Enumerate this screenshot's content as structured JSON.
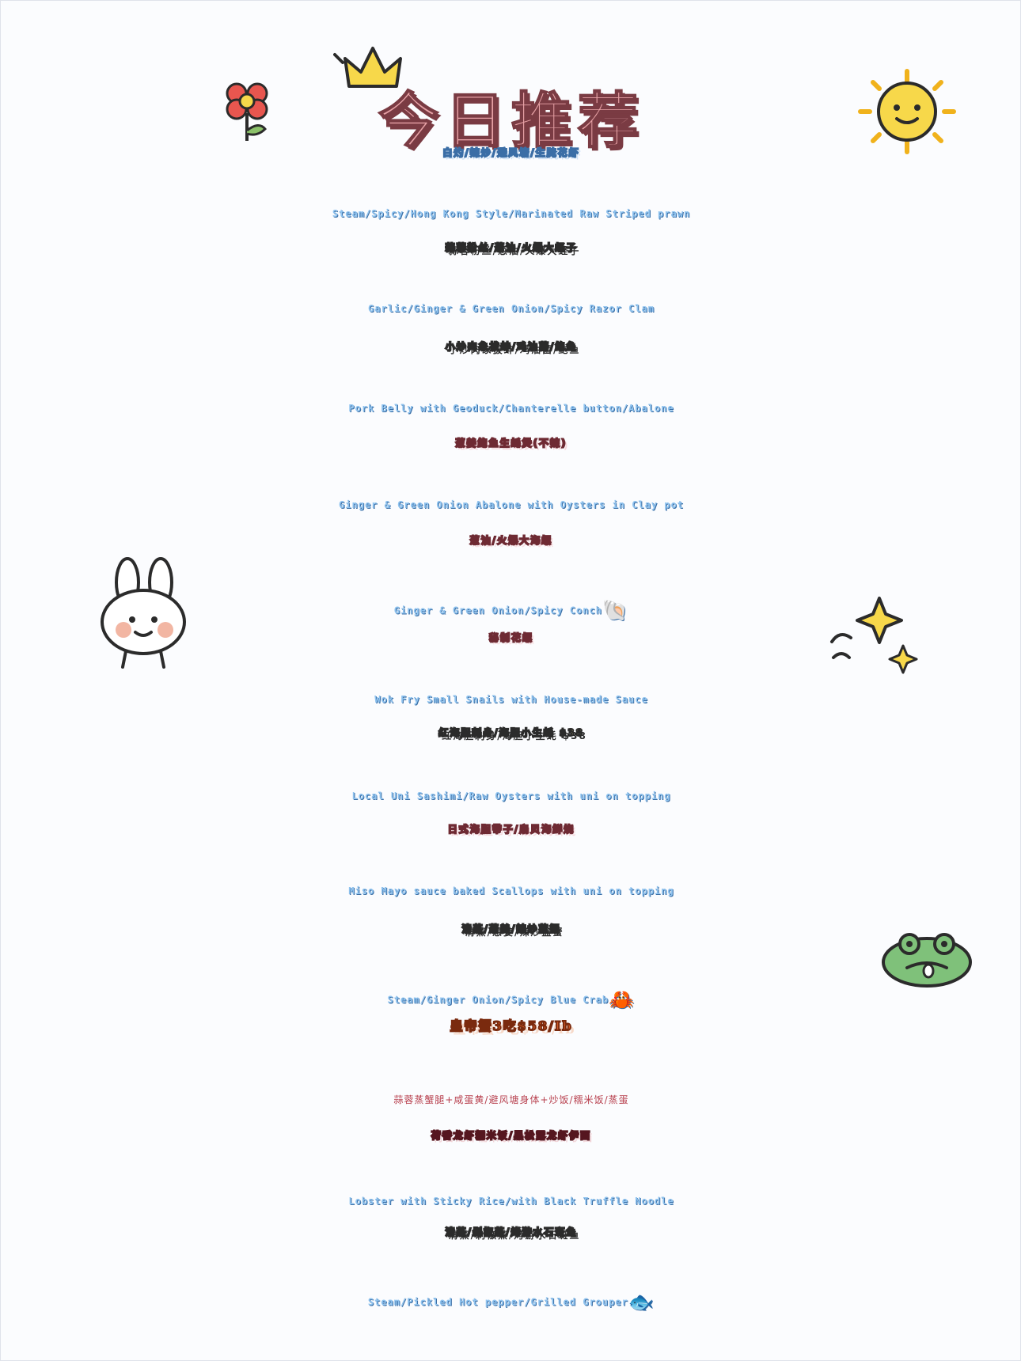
{
  "title": "今日推荐",
  "items": [
    {
      "zh": "白灼/辣炒/避风塘/生腌花虾",
      "en": "Steam/Spicy/Hong Kong Style/Marinated Raw Striped prawn"
    },
    {
      "zh": "蒜蓉粉丝/葱油/火爆大蛏子",
      "en": "Garlic/Ginger & Green Onion/Spicy Razor Clam"
    },
    {
      "zh": "小炒肉象拔蚌/鸡油菌/鲍鱼",
      "en": "Pork Belly with Geoduck/Chanterelle button/Abalone"
    },
    {
      "zh": "葱姜鲍鱼生蚝煲(不辣)",
      "en": "Ginger & Green Onion Abalone with Oysters in Clay pot"
    },
    {
      "zh": "葱油/火爆大海螺",
      "en": "Ginger & Green Onion/Spicy Conch"
    },
    {
      "zh": "秘制花螺",
      "en": "Wok Fry Small Snails with House-made Sauce"
    },
    {
      "zh": "红海胆刺身/海胆小生蚝 $38",
      "en": "Local Uni Sashimi/Raw Oysters with uni on topping"
    },
    {
      "zh": "日式海胆带子/扇贝海鲜烧",
      "en": "Miso Mayo sauce baked Scallops with uni on topping"
    },
    {
      "zh": "清蒸/葱姜/辣炒蓝蟹",
      "en": "Steam/Ginger Onion/Spicy Blue Crab"
    },
    {
      "zh": "皇帝蟹3吃$58/Ib",
      "en": "蒜蓉蒸蟹腿+咸蛋黄/避风塘身体+炒饭/糯米饭/蒸蛋"
    },
    {
      "zh": "荷香龙虾糯米饭/黑松露龙虾伊面",
      "en": "Lobster with Sticky Rice/with Black Truffle Noodle"
    },
    {
      "zh": "清蒸/剁椒蒸/烤游水石斑鱼",
      "en": "Steam/Pickled Hot pepper/Grilled Grouper"
    }
  ],
  "icons": {
    "conch": "🐚",
    "crab": "🦀",
    "fish": "🐟"
  },
  "colors": {
    "title": "#e7a2a6",
    "blue": "#6aa3e3",
    "yellow": "#f8ec95",
    "rose": "#c95c69",
    "maroon": "#8f2e3c",
    "orange": "#d9602a",
    "english": "#8fc3ef"
  }
}
